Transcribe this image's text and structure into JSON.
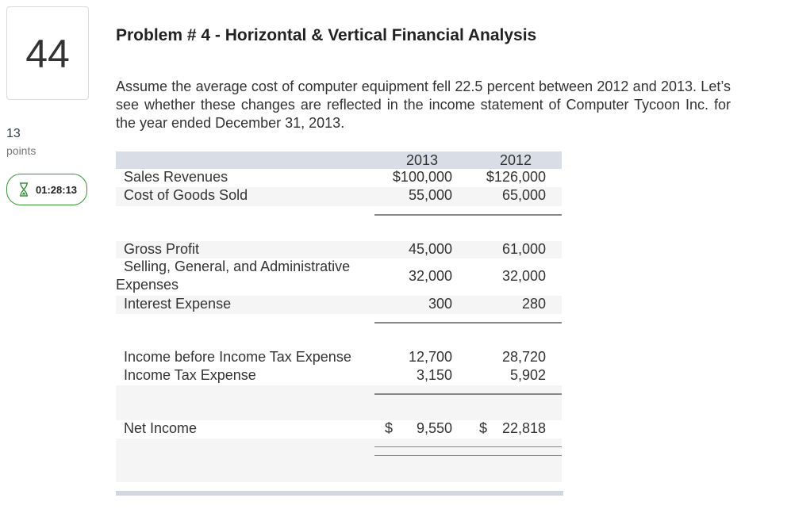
{
  "question": {
    "number": "44",
    "points_value": "13",
    "points_label": "points",
    "timer": "01:28:13"
  },
  "problem": {
    "title": "Problem # 4 - Horizontal & Vertical Financial Analysis",
    "paragraph": "Assume the average cost of computer equipment fell 22.5 percent between 2012 and 2013. Let’s see whether these changes are reflected in the income statement of Computer Tycoon Inc. for the year ended December 31, 2013."
  },
  "statement": {
    "year_2013": "2013",
    "year_2012": "2012",
    "sales_revenues": {
      "label": "Sales Revenues",
      "v2013": "$100,000",
      "v2012": "$126,000"
    },
    "cogs": {
      "label": "Cost of Goods Sold",
      "v2013": "55,000",
      "v2012": "65,000"
    },
    "gross_profit": {
      "label": "Gross Profit",
      "v2013": "45,000",
      "v2012": "61,000"
    },
    "sga": {
      "label_line1": "Selling, General, and Administrative",
      "label_line2": "Expenses",
      "v2013": "32,000",
      "v2012": "32,000"
    },
    "interest": {
      "label": "Interest Expense",
      "v2013": "300",
      "v2012": "280"
    },
    "income_before_tax": {
      "label": "Income before Income Tax Expense",
      "v2013": "12,700",
      "v2012": "28,720"
    },
    "income_tax": {
      "label": "Income Tax Expense",
      "v2013": "3,150",
      "v2012": "5,902"
    },
    "net_income": {
      "label": "Net Income",
      "currency": "$",
      "v2013": "9,550",
      "v2012": "22,818"
    }
  },
  "colors": {
    "timer_border": "#3a8f3a",
    "header_band": "#d9dde6",
    "row_band": "#f5f5f5"
  }
}
